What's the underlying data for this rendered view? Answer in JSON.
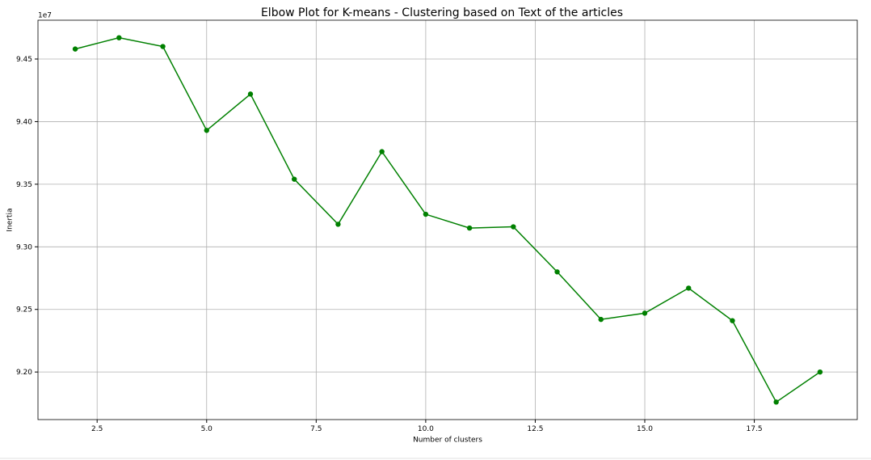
{
  "chart_data": {
    "type": "line",
    "title": "Elbow Plot for K-means - Clustering based on Text of the articles",
    "x_label": "Number of clusters",
    "y_label": "Inertia",
    "y_offset_label": "1e7",
    "x": [
      2,
      3,
      4,
      5,
      6,
      7,
      8,
      9,
      10,
      11,
      12,
      13,
      14,
      15,
      16,
      17,
      18,
      19
    ],
    "series": [
      {
        "name": "Inertia",
        "color": "#008000",
        "values": [
          9.458,
          9.467,
          9.46,
          9.393,
          9.422,
          9.354,
          9.318,
          9.376,
          9.326,
          9.315,
          9.316,
          9.28,
          9.242,
          9.247,
          9.267,
          9.241,
          9.176,
          9.2
        ]
      }
    ],
    "xlim": [
      1.15,
      19.85
    ],
    "xticks": [
      2.5,
      {
        "value": 5,
        "label": "5.0"
      },
      7.5,
      {
        "value": 10,
        "label": "10.0"
      },
      12.5,
      {
        "value": 15,
        "label": "15.0"
      },
      17.5
    ],
    "ylim": [
      9.162,
      9.481
    ],
    "yticks": [
      {
        "value": 9.2,
        "label": "9.20"
      },
      9.25,
      {
        "value": 9.3,
        "label": "9.30"
      },
      9.35,
      {
        "value": 9.4,
        "label": "9.40"
      },
      9.45
    ],
    "grid": true,
    "marker": "circle"
  }
}
